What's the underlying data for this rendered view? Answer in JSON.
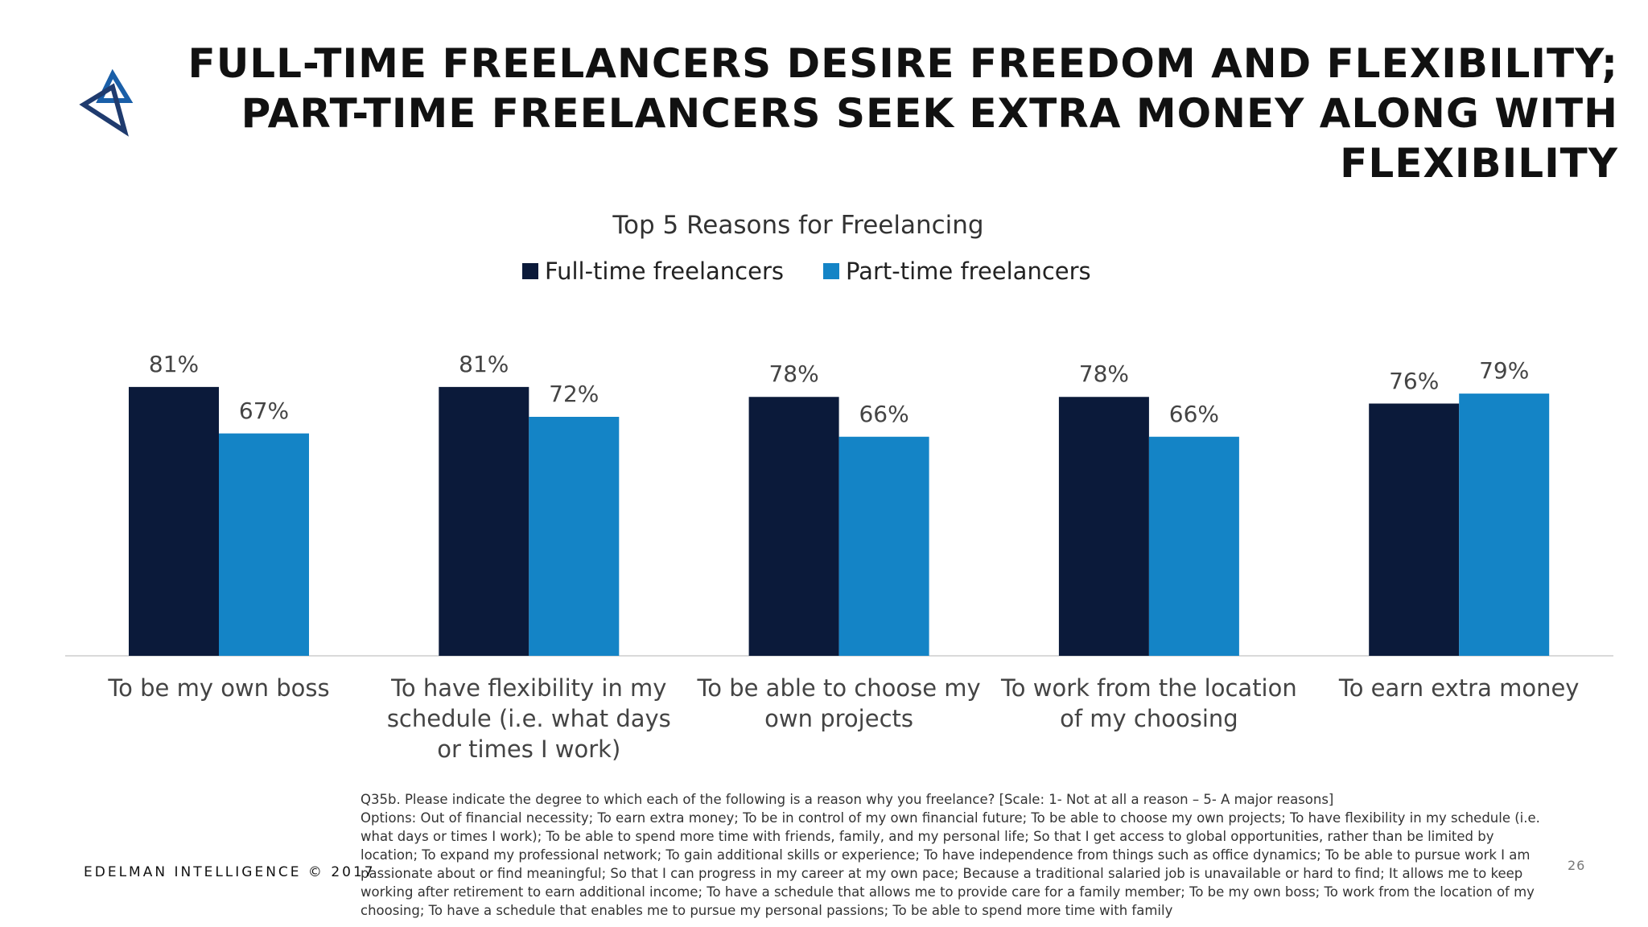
{
  "chart_data": {
    "type": "bar",
    "title": [
      "FULL-TIME FREELANCERS DESIRE FREEDOM AND FLEXIBILITY;",
      "PART-TIME FREELANCERS SEEK EXTRA MONEY ALONG WITH",
      "FLEXIBILITY"
    ],
    "subtitle": "Top 5 Reasons for Freelancing",
    "categories": [
      "To be my own boss",
      "To have flexibility in my schedule (i.e. what days or times I work)",
      "To be able to choose my own projects",
      "To work from the location of my choosing",
      "To earn extra money"
    ],
    "series": [
      {
        "name": "Full-time freelancers",
        "color": "#0b1a3a",
        "values": [
          81,
          81,
          78,
          78,
          76
        ],
        "value_labels": [
          "81%",
          "81%",
          "78%",
          "78%",
          "76%"
        ]
      },
      {
        "name": "Part-time freelancers",
        "color": "#1484c6",
        "values": [
          67,
          72,
          66,
          66,
          79
        ],
        "value_labels": [
          "67%",
          "72%",
          "66%",
          "66%",
          "79%"
        ]
      }
    ],
    "notes": [
      "Q35b. Please indicate the degree to which each of the following is a reason why you freelance? [Scale: 1- Not at all a reason – 5- A major reasons]",
      "Options:  Out of financial necessity; To earn extra money; To be in control of my own financial future; To be able to choose my own projects; To have flexibility in my schedule (i.e. what days or times I work); To be able to spend more time with friends, family, and my personal life; So that I get access to global opportunities, rather than be limited by location; To expand my professional network; To gain additional skills or experience; To have independence from things such as office dynamics; To be able to pursue work I am passionate about or find meaningful; So that I can progress in my career at my own pace; Because a traditional salaried job is unavailable or hard to find; It allows me to keep working after retirement to earn additional income; To have a schedule that allows me to provide care for a family member; To be my own boss; To work from the location of my choosing; To have a schedule that enables me to pursue my personal passions; To be able to spend more time with family"
    ],
    "footer": "EDELMAN INTELLIGENCE © 2017",
    "page_number": "26"
  }
}
